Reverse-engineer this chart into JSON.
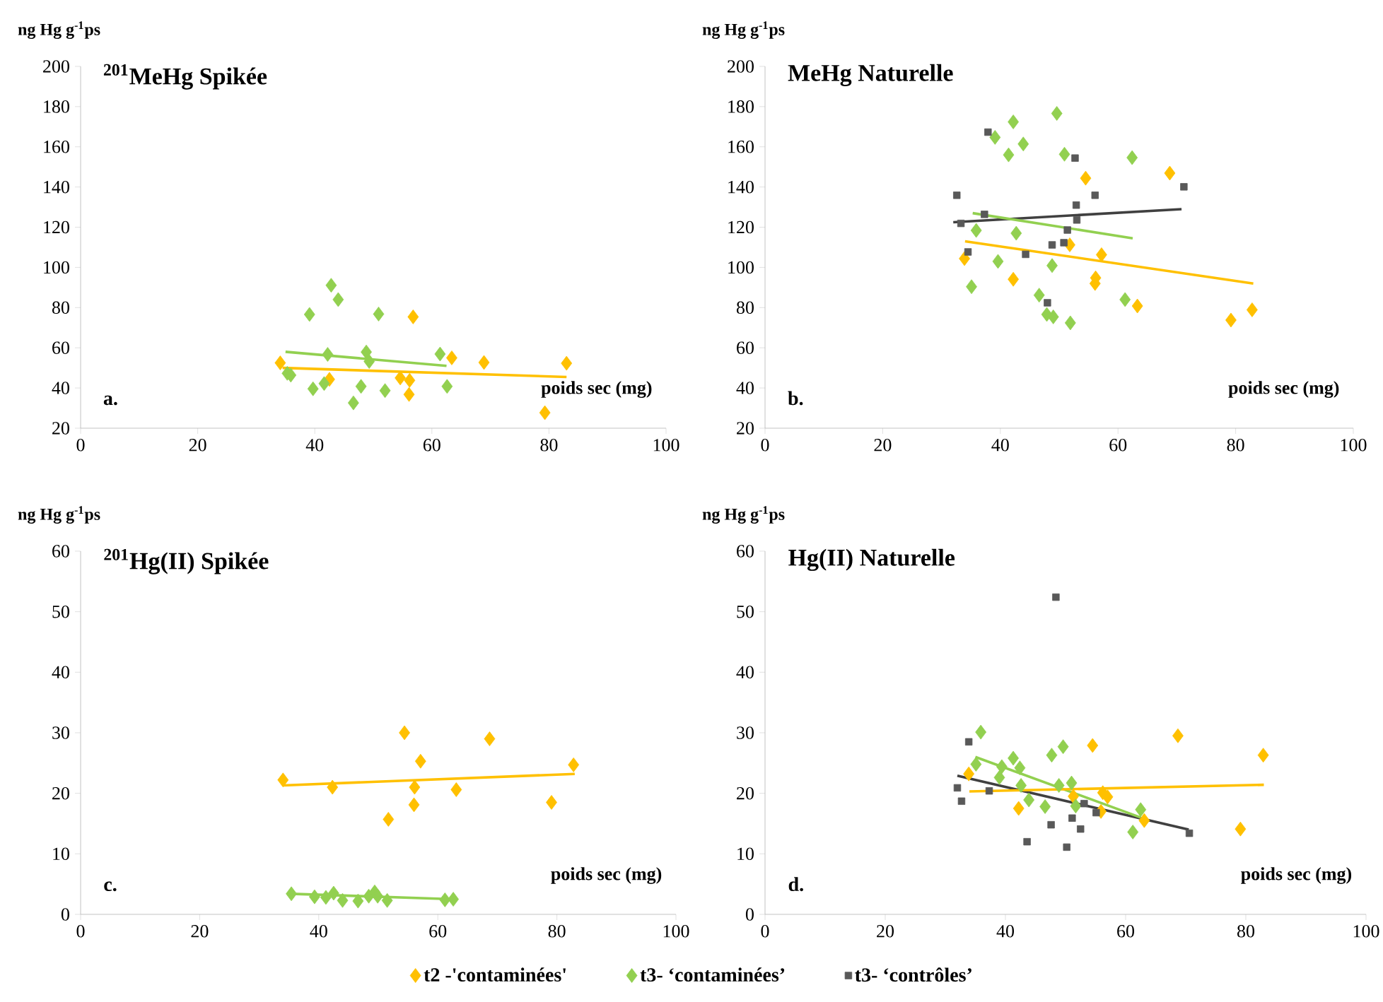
{
  "chart_data": [
    {
      "type": "scatter",
      "title": "$^{201}$MeHg Spikée",
      "ylabel": "ng Hg g$^{-1}$ps",
      "xlabel": "poids sec (mg)",
      "annotations": [
        "a."
      ],
      "xlim": [
        0,
        100
      ],
      "ylim": [
        20,
        200
      ],
      "xticks": [
        0,
        20,
        40,
        60,
        80,
        100
      ],
      "yticks": [
        20,
        40,
        60,
        80,
        100,
        120,
        140,
        160,
        180,
        200
      ],
      "marker": "diamond",
      "series": [
        {
          "color": "#ffc000",
          "x": [
            34.1,
            42.5,
            56.8,
            54.6,
            56.2,
            56.1,
            63.4,
            68.9,
            79.3,
            83
          ],
          "values": [
            52.5,
            44.3,
            75.4,
            45,
            43.8,
            36.8,
            55,
            52.7,
            27.7,
            52.3
          ]
        },
        {
          "color": "#92d050",
          "x": [
            35.3,
            35.9,
            39.1,
            39.7,
            41.6,
            42.2,
            42.8,
            44,
            46.6,
            47.9,
            48.8,
            49.3,
            50.9,
            52,
            61.4,
            62.6
          ],
          "values": [
            47.3,
            46.4,
            76.6,
            39.6,
            42.2,
            56.7,
            91.1,
            84,
            32.6,
            40.8,
            57.9,
            53.2,
            76.8,
            38.7,
            56.9,
            40.8
          ]
        },
        {
          "type": "line",
          "marker": "none",
          "color": "#ffc000",
          "x": [
            34.5,
            83
          ],
          "values": [
            50,
            45.5
          ]
        },
        {
          "type": "line",
          "marker": "none",
          "color": "#92d050",
          "x": [
            35,
            62.5
          ],
          "values": [
            58,
            51
          ]
        }
      ]
    },
    {
      "type": "scatter",
      "title": "MeHg Naturelle",
      "ylabel": "ng Hg g$^{-1}$ps",
      "xlabel": "poids sec (mg)",
      "annotations": [
        "b."
      ],
      "xlim": [
        0,
        100
      ],
      "ylim": [
        20,
        200
      ],
      "xticks": [
        0,
        20,
        40,
        60,
        80,
        100
      ],
      "yticks": [
        20,
        40,
        60,
        80,
        100,
        120,
        140,
        160,
        180,
        200
      ],
      "marker": "diamond",
      "series": [
        {
          "color": "#ffc000",
          "x": [
            33.9,
            42.2,
            54.5,
            51.8,
            56.1,
            56.2,
            57.2,
            63.3,
            68.8,
            79.2,
            82.8
          ],
          "values": [
            104.4,
            94.1,
            144.4,
            111.2,
            92,
            94.8,
            106.3,
            80.8,
            146.9,
            73.8,
            78.9
          ]
        },
        {
          "color": "#92d050",
          "x": [
            35.1,
            35.9,
            39.1,
            39.6,
            41.4,
            42.2,
            42.7,
            43.9,
            46.6,
            47.9,
            48.8,
            49,
            49.6,
            50.9,
            51.9,
            61.2,
            62.4
          ],
          "values": [
            90.4,
            118.4,
            164.7,
            103,
            156,
            172.4,
            117,
            161.4,
            86.2,
            76.6,
            100.9,
            75.4,
            176.6,
            156.3,
            72.4,
            84,
            154.6
          ]
        },
        {
          "color": "#595959",
          "marker": "square",
          "x": [
            32.6,
            33.3,
            34.5,
            37.9,
            37.3,
            44.3,
            48,
            48.8,
            50.8,
            51.4,
            52.7,
            52.9,
            53,
            56.1,
            71.2
          ],
          "values": [
            135.9,
            121.9,
            107.7,
            167.3,
            126.4,
            106.5,
            82.4,
            111.2,
            112.3,
            118.6,
            154.4,
            131,
            123.6,
            135.9,
            140.1
          ]
        },
        {
          "type": "line",
          "marker": "none",
          "color": "#404040",
          "x": [
            32,
            70.8
          ],
          "values": [
            122.5,
            129
          ]
        },
        {
          "type": "line",
          "marker": "none",
          "color": "#92d050",
          "x": [
            35.3,
            62.5
          ],
          "values": [
            127,
            114.5
          ]
        },
        {
          "type": "line",
          "marker": "none",
          "color": "#ffc000",
          "x": [
            34,
            83
          ],
          "values": [
            113,
            92
          ]
        }
      ]
    },
    {
      "type": "scatter",
      "title": "$^{201}$Hg(II) Spikée",
      "ylabel": "ng Hg g$^{-1}$ps",
      "xlabel": "poids sec (mg)",
      "annotations": [
        "c."
      ],
      "xlim": [
        0,
        100
      ],
      "ylim": [
        0,
        60
      ],
      "xticks": [
        0,
        20,
        40,
        60,
        80,
        100
      ],
      "yticks": [
        0,
        10,
        20,
        30,
        40,
        50,
        60
      ],
      "marker": "diamond",
      "series": [
        {
          "color": "#ffc000",
          "x": [
            34,
            42.3,
            51.7,
            54.4,
            56,
            56.1,
            57.1,
            63.1,
            68.7,
            79.1,
            82.8
          ],
          "values": [
            22.2,
            21,
            15.7,
            30,
            18.1,
            21,
            25.3,
            20.6,
            29,
            18.5,
            24.7
          ]
        },
        {
          "color": "#92d050",
          "x": [
            35.4,
            39.3,
            41.2,
            42.5,
            44,
            46.6,
            48.4,
            49.4,
            49.9,
            51.5,
            61.2,
            62.6
          ],
          "values": [
            3.4,
            2.9,
            2.8,
            3.5,
            2.3,
            2.2,
            3,
            3.7,
            3,
            2.3,
            2.4,
            2.5
          ]
        },
        {
          "type": "line",
          "marker": "none",
          "color": "#ffc000",
          "x": [
            34,
            83
          ],
          "values": [
            21.3,
            23.2
          ]
        },
        {
          "type": "line",
          "marker": "none",
          "color": "#92d050",
          "x": [
            35.3,
            62.5
          ],
          "values": [
            3.4,
            2.5
          ]
        }
      ]
    },
    {
      "type": "scatter",
      "title": "Hg(II) Naturelle",
      "ylabel": "ng Hg g$^{-1}$ps",
      "xlabel": "poids sec (mg)",
      "annotations": [
        "d."
      ],
      "xlim": [
        0,
        100
      ],
      "ylim": [
        0,
        60
      ],
      "xticks": [
        0,
        20,
        40,
        60,
        80,
        100
      ],
      "yticks": [
        0,
        10,
        20,
        30,
        40,
        50,
        60
      ],
      "marker": "diamond",
      "legend": "bottom",
      "series": [
        {
          "name": "t2 -'contaminées'",
          "color": "#ffc000",
          "x": [
            33.9,
            42.2,
            54.5,
            56.2,
            57,
            55.9,
            63.1,
            68.7,
            79.1,
            82.9,
            51.3
          ],
          "values": [
            23.2,
            17.5,
            27.9,
            20.1,
            19.4,
            17,
            15.5,
            29.5,
            14.1,
            26.3,
            19.5
          ]
        },
        {
          "name": "t3- ‘contaminées’",
          "color": "#92d050",
          "x": [
            35.1,
            35.9,
            39.4,
            39,
            41.3,
            42.4,
            42.6,
            43.9,
            46.6,
            47.7,
            48.9,
            49.6,
            51,
            51.7,
            61.2,
            62.5
          ],
          "values": [
            24.8,
            30.1,
            24.4,
            22.6,
            25.8,
            24.2,
            21.3,
            18.9,
            17.8,
            26.3,
            21.3,
            27.7,
            21.7,
            17.9,
            13.6,
            17.3
          ]
        },
        {
          "name": "t3- ‘contrôles’",
          "color": "#595959",
          "marker": "square",
          "x": [
            32,
            32.7,
            33.9,
            37.3,
            43.6,
            47.6,
            48.4,
            50.2,
            51.1,
            52.5,
            53.1,
            55.1,
            70.6
          ],
          "values": [
            20.9,
            18.7,
            28.5,
            20.4,
            12,
            14.8,
            52.4,
            11.1,
            15.9,
            14.1,
            18.3,
            16.8,
            13.4
          ]
        },
        {
          "type": "line",
          "marker": "none",
          "color": "#404040",
          "x": [
            32,
            70.5
          ],
          "values": [
            22.9,
            14
          ]
        },
        {
          "type": "line",
          "marker": "none",
          "color": "#92d050",
          "x": [
            35,
            62.5
          ],
          "values": [
            26,
            16
          ]
        },
        {
          "type": "line",
          "marker": "none",
          "color": "#ffc000",
          "x": [
            34,
            83
          ],
          "values": [
            20.3,
            21.4
          ]
        }
      ]
    }
  ]
}
